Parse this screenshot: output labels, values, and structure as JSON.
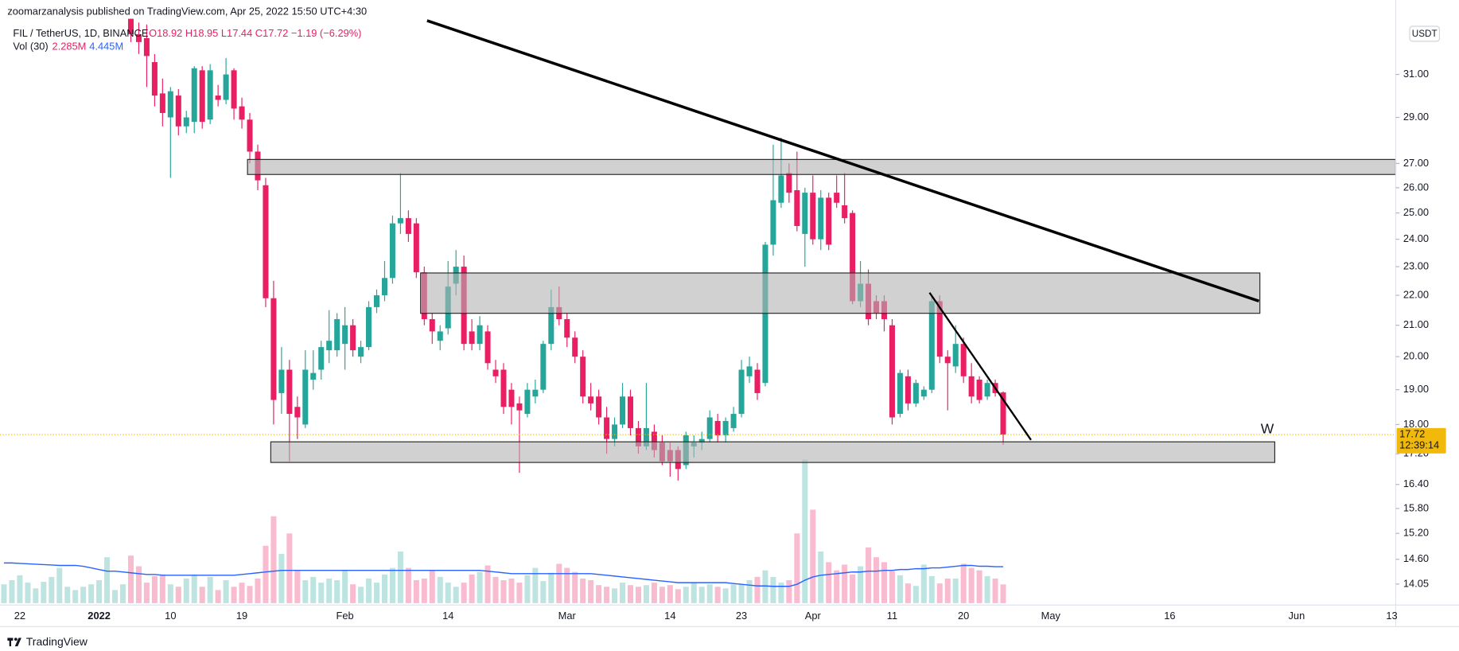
{
  "header": {
    "published": "zoomarzanalysis published on TradingView.com, Apr 25, 2022 15:50 UTC+4:30",
    "symbol": "FIL / TetherUS, 1D, BINANCE",
    "ohlc": "O18.92 H18.95 L17.44 C17.72 −1.19 (−6.29%)",
    "vol_title": "Vol (30)",
    "vol_value": "2.285M",
    "vol_ma": "4.445M"
  },
  "footer": "TradingView",
  "chart_data": {
    "type": "candlestick",
    "log_scale": true,
    "grid": false,
    "currency": "USDT",
    "countdown": "12:39:14",
    "annotation": "W",
    "up_color": "#26a69a",
    "down_color": "#e91e63",
    "categories": [
      null,
      null,
      "22",
      null,
      null,
      null,
      null,
      null,
      null,
      null,
      null,
      null,
      "2022",
      null,
      null,
      null,
      null,
      null,
      null,
      null,
      null,
      "10",
      null,
      null,
      null,
      null,
      null,
      null,
      null,
      null,
      "19",
      null,
      null,
      null,
      null,
      null,
      null,
      null,
      null,
      null,
      null,
      null,
      null,
      "Feb",
      null,
      null,
      null,
      null,
      null,
      null,
      null,
      null,
      null,
      null,
      null,
      null,
      "14",
      null,
      null,
      null,
      null,
      null,
      null,
      null,
      null,
      null,
      null,
      null,
      null,
      null,
      null,
      "Mar",
      null,
      null,
      null,
      null,
      null,
      null,
      null,
      null,
      null,
      null,
      null,
      null,
      "14",
      null,
      null,
      null,
      null,
      null,
      null,
      null,
      null,
      "23",
      null,
      null,
      null,
      null,
      null,
      null,
      null,
      null,
      "Apr",
      null,
      null,
      null,
      null,
      null,
      null,
      null,
      null,
      null,
      "11",
      null,
      null,
      null,
      null,
      null,
      null,
      null,
      null,
      "20",
      null,
      null,
      null,
      null,
      null,
      null,
      null,
      null,
      null,
      null,
      "May",
      null,
      null,
      null,
      null,
      null,
      null,
      null,
      null,
      null,
      null,
      null,
      null,
      null,
      null,
      "16",
      null,
      null,
      null,
      null,
      null,
      null,
      null,
      null,
      null,
      null,
      null,
      null,
      null,
      null,
      null,
      "Jun",
      null,
      null,
      null,
      null,
      null,
      null,
      null,
      null,
      null,
      null,
      null,
      "13"
    ],
    "open": [
      null,
      null,
      null,
      null,
      null,
      null,
      null,
      null,
      null,
      null,
      null,
      null,
      null,
      null,
      null,
      null,
      34.6,
      33.0,
      32.8,
      31.6,
      30.1,
      29.0,
      30.0,
      28.6,
      28.8,
      31.2,
      28.9,
      30.0,
      29.8,
      31.2,
      29.5,
      28.9,
      27.5,
      26.1,
      21.9,
      18.9,
      19.6,
      18.5,
      18.0,
      19.3,
      19.6,
      20.2,
      20.2,
      20.4,
      21.0,
      20.0,
      20.3,
      21.6,
      22.0,
      22.6,
      24.6,
      24.8,
      24.6,
      22.8,
      21.2,
      20.5,
      20.9,
      22.4,
      23.0,
      20.8,
      20.4,
      20.8,
      19.6,
      19.6,
      19.0,
      18.6,
      18.3,
      18.8,
      19.0,
      20.4,
      21.6,
      21.2,
      20.6,
      20.0,
      18.8,
      18.8,
      18.2,
      17.6,
      18.0,
      18.8,
      17.9,
      17.4,
      17.8,
      17.5,
      17.3,
      17.3,
      16.9,
      17.4,
      17.5,
      17.6,
      18.1,
      17.7,
      17.9,
      18.3,
      19.4,
      19.6,
      19.2,
      23.8,
      25.4,
      26.6,
      25.9,
      24.2,
      25.8,
      24.0,
      25.6,
      25.8,
      25.3,
      25.0,
      21.8,
      22.4,
      21.8,
      21.8,
      21.0,
      18.3,
      19.4,
      18.6,
      18.8,
      19.0,
      21.8,
      20.0,
      19.7,
      20.4,
      19.4,
      19.3,
      18.8,
      19.2,
      18.92,
      null,
      null,
      null,
      null,
      null,
      null,
      null,
      null,
      null,
      null,
      null,
      null,
      null,
      null,
      null,
      null,
      null,
      null,
      null,
      null,
      null,
      null,
      null,
      null,
      null,
      null,
      null,
      null,
      null,
      null,
      null,
      null,
      null,
      null,
      null,
      null,
      null,
      null,
      null,
      null,
      null,
      null,
      null,
      null,
      null,
      null,
      null,
      null,
      null
    ],
    "high": [
      null,
      null,
      null,
      null,
      null,
      null,
      null,
      null,
      null,
      null,
      null,
      null,
      null,
      null,
      null,
      null,
      35.2,
      33.6,
      33.5,
      32.0,
      30.8,
      30.4,
      30.3,
      29.3,
      31.4,
      31.4,
      31.5,
      30.5,
      31.8,
      31.3,
      29.9,
      29.2,
      27.8,
      26.4,
      22.5,
      20.3,
      19.9,
      18.8,
      20.2,
      20.2,
      20.5,
      21.5,
      21.4,
      21.6,
      21.2,
      20.5,
      21.8,
      22.2,
      23.2,
      24.9,
      26.6,
      25.1,
      24.8,
      23.0,
      21.4,
      21.0,
      23.2,
      23.6,
      23.4,
      21.2,
      21.3,
      21.0,
      19.9,
      19.8,
      19.2,
      18.8,
      19.2,
      19.3,
      20.5,
      22.2,
      22.3,
      21.4,
      20.8,
      20.2,
      19.2,
      19.0,
      18.5,
      18.2,
      19.2,
      19.0,
      18.1,
      19.2,
      18.0,
      17.7,
      17.5,
      17.4,
      17.8,
      17.7,
      17.8,
      18.4,
      18.3,
      18.2,
      18.5,
      19.9,
      20.0,
      19.8,
      23.9,
      27.8,
      28.1,
      27.0,
      27.5,
      26.0,
      26.5,
      25.9,
      25.8,
      26.5,
      26.6,
      25.1,
      23.2,
      22.9,
      22.0,
      22.0,
      21.2,
      19.6,
      19.6,
      19.3,
      19.1,
      22.0,
      22.0,
      20.2,
      21.0,
      20.6,
      19.8,
      19.4,
      19.3,
      19.3,
      18.95,
      null,
      null,
      null,
      null,
      null,
      null,
      null,
      null,
      null,
      null,
      null,
      null,
      null,
      null,
      null,
      null,
      null,
      null,
      null,
      null,
      null,
      null,
      null,
      null,
      null,
      null,
      null,
      null,
      null,
      null,
      null,
      null,
      null,
      null,
      null,
      null,
      null,
      null,
      null,
      null,
      null,
      null,
      null,
      null,
      null,
      null,
      null,
      null,
      null
    ],
    "low": [
      null,
      null,
      null,
      null,
      null,
      null,
      null,
      null,
      null,
      null,
      null,
      null,
      null,
      null,
      null,
      null,
      32.6,
      32.0,
      30.4,
      29.5,
      28.6,
      26.4,
      28.2,
      28.3,
      28.3,
      28.5,
      28.7,
      29.5,
      29.6,
      28.9,
      28.5,
      27.0,
      25.9,
      21.6,
      18.0,
      18.3,
      17.0,
      17.6,
      17.9,
      19.0,
      19.3,
      19.8,
      20.0,
      19.6,
      20.0,
      19.8,
      20.2,
      21.4,
      21.8,
      22.4,
      24.2,
      23.9,
      22.6,
      21.0,
      20.4,
      20.2,
      20.7,
      22.0,
      20.2,
      20.2,
      20.2,
      19.6,
      19.2,
      18.3,
      18.0,
      16.7,
      18.2,
      18.6,
      18.9,
      20.2,
      21.0,
      20.3,
      19.8,
      18.6,
      18.4,
      18.0,
      17.2,
      17.4,
      17.9,
      17.7,
      17.2,
      17.3,
      17.1,
      16.9,
      16.6,
      16.5,
      16.8,
      17.1,
      17.3,
      17.5,
      17.5,
      17.5,
      17.8,
      18.2,
      19.2,
      18.7,
      19.1,
      23.4,
      25.2,
      25.4,
      24.3,
      23.0,
      23.8,
      23.6,
      23.6,
      25.2,
      24.6,
      21.7,
      21.6,
      21.0,
      21.2,
      20.8,
      18.0,
      18.2,
      18.4,
      18.5,
      18.7,
      18.9,
      19.8,
      18.4,
      19.5,
      19.2,
      18.6,
      18.6,
      18.7,
      18.8,
      17.44,
      null,
      null,
      null,
      null,
      null,
      null,
      null,
      null,
      null,
      null,
      null,
      null,
      null,
      null,
      null,
      null,
      null,
      null,
      null,
      null,
      null,
      null,
      null,
      null,
      null,
      null,
      null,
      null,
      null,
      null,
      null,
      null,
      null,
      null,
      null,
      null,
      null,
      null,
      null,
      null,
      null,
      null,
      null,
      null,
      null,
      null,
      null,
      null,
      null
    ],
    "close": [
      null,
      null,
      null,
      null,
      null,
      null,
      null,
      null,
      null,
      null,
      null,
      null,
      null,
      null,
      null,
      null,
      33.0,
      32.6,
      31.9,
      30.0,
      29.2,
      30.2,
      28.6,
      29.0,
      31.3,
      28.8,
      31.2,
      29.8,
      31.0,
      29.4,
      28.9,
      27.5,
      26.3,
      21.9,
      18.7,
      19.6,
      18.3,
      18.2,
      19.6,
      19.5,
      20.3,
      20.5,
      21.2,
      21.0,
      20.2,
      20.3,
      21.6,
      22.0,
      22.6,
      24.6,
      24.8,
      24.2,
      22.8,
      21.2,
      20.8,
      20.8,
      22.3,
      23.0,
      20.4,
      20.4,
      21.0,
      19.8,
      19.4,
      18.5,
      18.5,
      18.4,
      19.0,
      19.0,
      20.4,
      21.6,
      21.2,
      20.6,
      20.0,
      18.8,
      18.6,
      18.2,
      17.6,
      18.0,
      18.8,
      17.9,
      17.4,
      17.9,
      17.3,
      17.0,
      17.0,
      16.8,
      17.7,
      17.5,
      17.6,
      18.2,
      17.7,
      18.1,
      18.3,
      19.6,
      19.7,
      18.9,
      23.8,
      25.5,
      26.5,
      25.8,
      24.5,
      25.8,
      24.0,
      25.6,
      23.8,
      25.4,
      24.8,
      21.8,
      22.4,
      21.2,
      21.4,
      21.2,
      18.2,
      19.5,
      18.6,
      19.2,
      19.0,
      21.8,
      20.0,
      19.8,
      20.4,
      19.4,
      18.8,
      18.7,
      19.2,
      18.9,
      17.72,
      null,
      null,
      null,
      null,
      null,
      null,
      null,
      null,
      null,
      null,
      null,
      null,
      null,
      null,
      null,
      null,
      null,
      null,
      null,
      null,
      null,
      null,
      null,
      null,
      null,
      null,
      null,
      null,
      null,
      null,
      null,
      null,
      null,
      null,
      null,
      null,
      null,
      null,
      null,
      null,
      null,
      null,
      null,
      null,
      null,
      null,
      null,
      null,
      null
    ],
    "volume": {
      "ma_color": "#2962ff",
      "values": [
        2.3,
        2.8,
        3.4,
        2.5,
        1.8,
        2.6,
        3.2,
        4.3,
        2.0,
        1.6,
        2.0,
        2.3,
        2.8,
        5.6,
        1.6,
        2.3,
        5.8,
        4.5,
        2.5,
        3.3,
        3.5,
        2.3,
        2.0,
        3.0,
        3.5,
        2.0,
        3.2,
        1.6,
        2.8,
        2.0,
        2.5,
        2.1,
        3.0,
        7.0,
        10.6,
        6.0,
        8.5,
        4.0,
        2.8,
        3.2,
        2.5,
        3.0,
        2.8,
        4.0,
        2.3,
        2.0,
        3.0,
        2.5,
        3.5,
        4.3,
        6.3,
        4.3,
        2.8,
        3.0,
        4.0,
        3.2,
        2.5,
        2.0,
        2.5,
        3.5,
        3.8,
        4.6,
        3.2,
        2.8,
        3.0,
        2.5,
        3.4,
        4.3,
        2.7,
        3.7,
        4.8,
        4.3,
        3.8,
        3.0,
        2.8,
        2.2,
        2.0,
        1.8,
        2.5,
        2.2,
        2.0,
        2.2,
        2.5,
        2.0,
        2.2,
        1.7,
        2.0,
        2.5,
        2.0,
        2.3,
        2.0,
        1.8,
        2.3,
        2.3,
        2.8,
        3.2,
        4.0,
        3.2,
        2.5,
        2.8,
        8.5,
        17.5,
        11.4,
        6.3,
        5.0,
        4.0,
        4.7,
        3.5,
        4.5,
        6.8,
        5.6,
        5.0,
        3.9,
        3.4,
        2.4,
        2.1,
        4.7,
        3.3,
        2.4,
        3.0,
        3.0,
        4.8,
        4.3,
        4.0,
        3.3,
        3.0,
        2.285,
        null,
        null,
        null,
        null,
        null,
        null,
        null,
        null,
        null,
        null,
        null,
        null,
        null,
        null,
        null,
        null,
        null,
        null,
        null,
        null,
        null,
        null,
        null,
        null,
        null,
        null,
        null,
        null,
        null,
        null,
        null,
        null,
        null,
        null,
        null,
        null,
        null,
        null,
        null,
        null,
        null,
        null,
        null,
        null,
        null,
        null,
        null,
        null,
        null
      ],
      "ma": [
        4.9,
        4.9,
        4.85,
        4.8,
        4.75,
        4.7,
        4.65,
        4.6,
        4.6,
        4.6,
        4.5,
        4.3,
        4.1,
        3.9,
        3.9,
        3.8,
        3.7,
        3.6,
        3.5,
        3.5,
        3.4,
        3.4,
        3.4,
        3.4,
        3.4,
        3.4,
        3.4,
        3.4,
        3.4,
        3.4,
        3.5,
        3.6,
        3.7,
        3.8,
        3.9,
        4.0,
        4.0,
        4.0,
        4.0,
        4.0,
        4.0,
        4.0,
        4.0,
        4.0,
        4.0,
        4.0,
        4.0,
        4.0,
        4.0,
        4.0,
        4.0,
        4.0,
        4.0,
        4.0,
        4.0,
        4.0,
        4.0,
        4.0,
        4.0,
        4.0,
        4.0,
        3.9,
        3.8,
        3.7,
        3.6,
        3.6,
        3.6,
        3.6,
        3.6,
        3.6,
        3.6,
        3.6,
        3.6,
        3.6,
        3.6,
        3.5,
        3.4,
        3.3,
        3.2,
        3.1,
        3.0,
        2.9,
        2.8,
        2.7,
        2.6,
        2.5,
        2.5,
        2.5,
        2.5,
        2.5,
        2.5,
        2.5,
        2.4,
        2.3,
        2.2,
        2.1,
        2.1,
        2.05,
        2.05,
        2.05,
        2.3,
        2.8,
        3.2,
        3.4,
        3.5,
        3.6,
        3.7,
        3.8,
        3.8,
        3.9,
        3.9,
        4.0,
        4.0,
        4.1,
        4.1,
        4.2,
        4.2,
        4.3,
        4.3,
        4.4,
        4.5,
        4.6,
        4.6,
        4.5,
        4.5,
        4.45,
        4.445,
        null,
        null,
        null,
        null,
        null,
        null,
        null,
        null,
        null,
        null,
        null,
        null,
        null,
        null,
        null,
        null,
        null,
        null,
        null,
        null,
        null,
        null,
        null,
        null,
        null,
        null,
        null,
        null,
        null,
        null,
        null,
        null,
        null,
        null,
        null,
        null,
        null,
        null,
        null,
        null,
        null,
        null,
        null,
        null,
        null,
        null,
        null,
        null,
        null
      ]
    },
    "ylim": [
      13.6,
      33.8
    ],
    "yticks": [
      {
        "value": 31,
        "label": "31.00"
      },
      {
        "value": 29,
        "label": "29.00"
      },
      {
        "value": 27,
        "label": "27.00"
      },
      {
        "value": 26,
        "label": "26.00"
      },
      {
        "value": 25,
        "label": "25.00"
      },
      {
        "value": 24,
        "label": "24.00"
      },
      {
        "value": 23,
        "label": "23.00"
      },
      {
        "value": 22,
        "label": "22.00"
      },
      {
        "value": 21,
        "label": "21.00"
      },
      {
        "value": 20,
        "label": "20.00"
      },
      {
        "value": 19,
        "label": "19.00"
      },
      {
        "value": 18,
        "label": "18.00"
      },
      {
        "value": 17.2,
        "label": "17.20"
      },
      {
        "value": 16.4,
        "label": "16.40"
      },
      {
        "value": 15.8,
        "label": "15.80"
      },
      {
        "value": 15.2,
        "label": "15.20"
      },
      {
        "value": 14.6,
        "label": "14.60"
      },
      {
        "value": 14.05,
        "label": "14.05"
      }
    ]
  }
}
